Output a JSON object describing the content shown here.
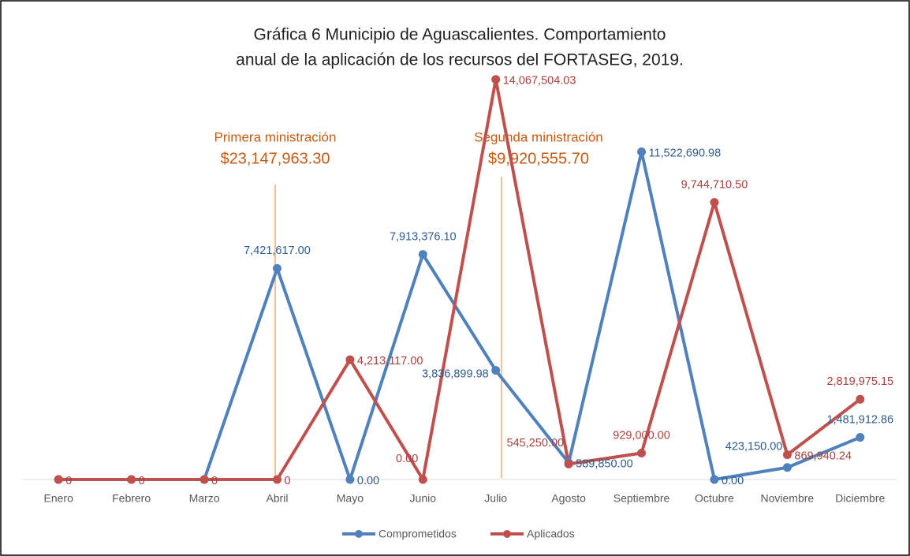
{
  "chart_data": {
    "type": "line",
    "title": [
      "Gráfica 6 Municipio de Aguascalientes. Comportamiento",
      "anual de la aplicación de los recursos del FORTASEG, 2019."
    ],
    "categories": [
      "Enero",
      "Febrero",
      "Marzo",
      "Abril",
      "Mayo",
      "Junio",
      "Julio",
      "Agosto",
      "Septiembre",
      "Octubre",
      "Noviembre",
      "Diciembre"
    ],
    "series": [
      {
        "name": "Comprometidos",
        "color": "#4f81bd",
        "values": [
          0,
          0,
          0,
          7421617.0,
          0.0,
          7913376.1,
          3836899.98,
          589850.0,
          11522690.98,
          0.0,
          423150.0,
          1481912.86
        ],
        "value_labels": [
          null,
          null,
          null,
          "7,421,617.00",
          "0.00",
          "7,913,376.10",
          "3,836,899.98",
          "589,850.00",
          "11,522,690.98",
          "0.00",
          "423,150.00",
          "1,481,912.86"
        ]
      },
      {
        "name": "Aplicados",
        "color": "#c0504d",
        "values": [
          0,
          0,
          0,
          0,
          4213117.0,
          0.0,
          14067504.03,
          545250.0,
          929000.0,
          9744710.5,
          869940.24,
          2819975.15
        ],
        "value_labels": [
          "0",
          "0",
          "0",
          "0",
          "4,213,117.00",
          "0.00",
          "14,067,504.03",
          "545,250.00",
          "929,000.00",
          "9,744,710.50",
          "869,940.24",
          "2,819,975.15"
        ]
      }
    ],
    "annotations": [
      {
        "text": "Primera ministración",
        "amount": "$23,147,963.30"
      },
      {
        "text": "Segunda ministración",
        "amount": "$9,920,555.70"
      }
    ],
    "ylim": [
      0,
      16000000
    ],
    "legend": "bottom"
  }
}
